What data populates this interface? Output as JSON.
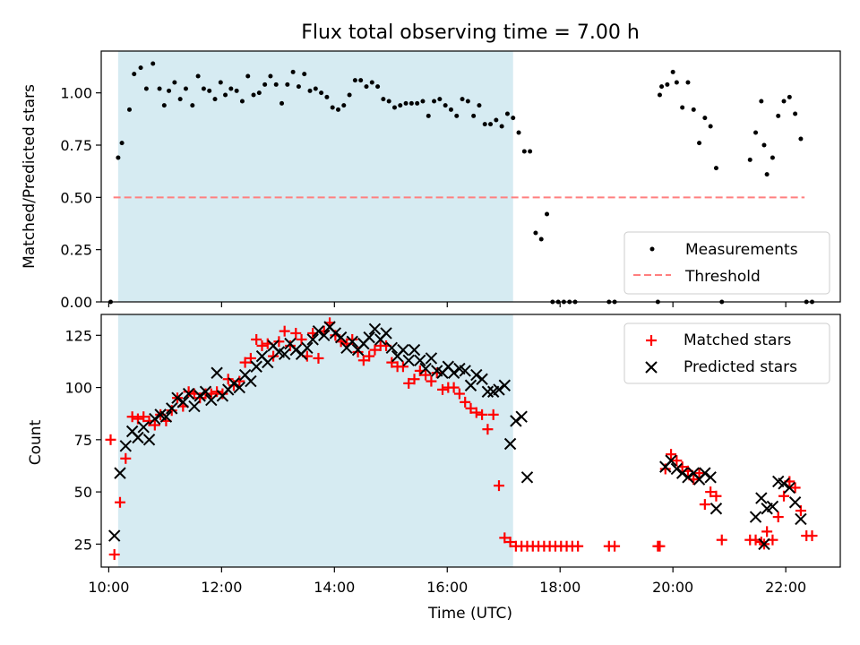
{
  "title": "Flux total observing time = 7.00 h",
  "chart_data": [
    {
      "type": "scatter",
      "panel": "top",
      "ylabel": "Matched/Predicted stars",
      "xlabel": "",
      "xlim": [
        "09:52",
        "22:58"
      ],
      "ylim": [
        0,
        1.2
      ],
      "yticks": [
        0.0,
        0.25,
        0.5,
        0.75,
        1.0
      ],
      "ytick_labels": [
        "0.00",
        "0.25",
        "0.50",
        "0.75",
        "1.00"
      ],
      "xticks": [
        "10:00",
        "12:00",
        "14:00",
        "16:00",
        "18:00",
        "20:00",
        "22:00"
      ],
      "shaded_interval": [
        "10:10",
        "17:10"
      ],
      "threshold": {
        "value": 0.5,
        "from": "10:05",
        "to": "22:20"
      },
      "legend": [
        "Measurements",
        "Threshold"
      ],
      "legend_loc": "lower right",
      "series": [
        {
          "name": "Measurements",
          "color": "#000000",
          "marker": "dot",
          "x": [
            "10:02",
            "10:10",
            "10:14",
            "10:22",
            "10:27",
            "10:34",
            "10:40",
            "10:47",
            "10:54",
            "10:59",
            "11:04",
            "11:10",
            "11:16",
            "11:22",
            "11:29",
            "11:35",
            "11:41",
            "11:47",
            "11:53",
            "11:59",
            "12:04",
            "12:10",
            "12:16",
            "12:22",
            "12:28",
            "12:34",
            "12:40",
            "12:46",
            "12:52",
            "12:58",
            "13:04",
            "13:10",
            "13:16",
            "13:22",
            "13:28",
            "13:34",
            "13:40",
            "13:46",
            "13:52",
            "13:58",
            "14:04",
            "14:10",
            "14:16",
            "14:22",
            "14:28",
            "14:34",
            "14:40",
            "14:46",
            "14:52",
            "14:58",
            "15:04",
            "15:10",
            "15:16",
            "15:22",
            "15:28",
            "15:34",
            "15:40",
            "15:46",
            "15:52",
            "15:58",
            "16:04",
            "16:10",
            "16:16",
            "16:22",
            "16:28",
            "16:34",
            "16:40",
            "16:46",
            "16:52",
            "16:58",
            "17:04",
            "17:10",
            "17:16",
            "17:22",
            "17:28",
            "17:34",
            "17:40",
            "17:46",
            "17:52",
            "17:58",
            "18:04",
            "18:10",
            "18:16",
            "18:52",
            "18:58",
            "19:44",
            "19:46",
            "19:48",
            "19:54",
            "20:00",
            "20:04",
            "20:10",
            "20:16",
            "20:22",
            "20:28",
            "20:34",
            "20:40",
            "20:46",
            "20:52",
            "21:22",
            "21:28",
            "21:34",
            "21:37",
            "21:40",
            "21:46",
            "21:52",
            "21:58",
            "22:04",
            "22:10",
            "22:16",
            "22:22",
            "22:28"
          ],
          "y": [
            0.0,
            0.69,
            0.76,
            0.92,
            1.09,
            1.12,
            1.02,
            1.14,
            1.02,
            0.94,
            1.01,
            1.05,
            0.97,
            1.02,
            0.94,
            1.08,
            1.02,
            1.01,
            0.97,
            1.05,
            0.99,
            1.02,
            1.01,
            0.96,
            1.08,
            0.99,
            1.0,
            1.04,
            1.08,
            1.04,
            0.95,
            1.04,
            1.1,
            1.03,
            1.09,
            1.01,
            1.02,
            1.0,
            0.98,
            0.93,
            0.92,
            0.94,
            0.99,
            1.06,
            1.06,
            1.03,
            1.05,
            1.03,
            0.97,
            0.96,
            0.93,
            0.94,
            0.95,
            0.95,
            0.95,
            0.96,
            0.89,
            0.96,
            0.97,
            0.94,
            0.92,
            0.89,
            0.97,
            0.96,
            0.89,
            0.94,
            0.85,
            0.85,
            0.87,
            0.84,
            0.9,
            0.88,
            0.81,
            0.72,
            0.72,
            0.33,
            0.3,
            0.42,
            0.0,
            0.0,
            0.0,
            0.0,
            0.0,
            0.0,
            0.0,
            0.0,
            0.99,
            1.03,
            1.04,
            1.1,
            1.05,
            0.93,
            1.05,
            0.92,
            0.76,
            0.88,
            0.84,
            0.64,
            0.0,
            0.68,
            0.81,
            0.96,
            0.75,
            0.61,
            0.69,
            0.89,
            0.96,
            0.98,
            0.9,
            0.78,
            0.0,
            0.0
          ]
        }
      ]
    },
    {
      "type": "scatter",
      "panel": "bottom",
      "xlabel": "Time (UTC)",
      "ylabel": "Count",
      "xlim": [
        "09:52",
        "22:58"
      ],
      "ylim": [
        14,
        135
      ],
      "yticks": [
        25,
        50,
        75,
        100,
        125
      ],
      "xticks": [
        "10:00",
        "12:00",
        "14:00",
        "16:00",
        "18:00",
        "20:00",
        "22:00"
      ],
      "shaded_interval": [
        "10:10",
        "17:10"
      ],
      "legend": [
        "Matched stars",
        "Predicted stars"
      ],
      "legend_loc": "upper right",
      "series": [
        {
          "name": "Matched stars",
          "color": "#ff0000",
          "marker": "plus",
          "x": [
            "10:02",
            "10:06",
            "10:12",
            "10:18",
            "10:25",
            "10:31",
            "10:37",
            "10:43",
            "10:49",
            "10:55",
            "11:01",
            "11:07",
            "11:13",
            "11:19",
            "11:25",
            "11:31",
            "11:37",
            "11:43",
            "11:49",
            "11:55",
            "12:01",
            "12:07",
            "12:13",
            "12:19",
            "12:25",
            "12:31",
            "12:37",
            "12:43",
            "12:49",
            "12:55",
            "13:01",
            "13:07",
            "13:13",
            "13:19",
            "13:25",
            "13:31",
            "13:37",
            "13:43",
            "13:49",
            "13:55",
            "14:01",
            "14:07",
            "14:13",
            "14:19",
            "14:25",
            "14:31",
            "14:37",
            "14:43",
            "14:49",
            "14:55",
            "15:01",
            "15:07",
            "15:13",
            "15:19",
            "15:25",
            "15:31",
            "15:37",
            "15:43",
            "15:49",
            "15:55",
            "16:01",
            "16:07",
            "16:13",
            "16:19",
            "16:25",
            "16:31",
            "16:37",
            "16:43",
            "16:49",
            "16:55",
            "17:01",
            "17:07",
            "17:13",
            "17:19",
            "17:25",
            "17:31",
            "17:37",
            "17:43",
            "17:49",
            "17:55",
            "18:01",
            "18:07",
            "18:13",
            "18:19",
            "18:52",
            "18:58",
            "19:44",
            "19:46",
            "19:52",
            "19:58",
            "20:04",
            "20:10",
            "20:16",
            "20:22",
            "20:28",
            "20:34",
            "20:40",
            "20:46",
            "20:52",
            "21:22",
            "21:28",
            "21:34",
            "21:37",
            "21:40",
            "21:46",
            "21:52",
            "21:58",
            "22:04",
            "22:10",
            "22:16",
            "22:22",
            "22:28"
          ],
          "y": [
            75,
            20,
            45,
            66,
            86,
            85,
            86,
            84,
            82,
            87,
            84,
            89,
            95,
            91,
            98,
            97,
            95,
            97,
            97,
            98,
            97,
            104,
            101,
            103,
            112,
            114,
            123,
            120,
            121,
            115,
            122,
            127,
            120,
            126,
            123,
            115,
            126,
            114,
            127,
            131,
            125,
            122,
            121,
            123,
            117,
            113,
            115,
            118,
            120,
            120,
            112,
            110,
            110,
            102,
            104,
            108,
            106,
            103,
            107,
            99,
            100,
            100,
            97,
            93,
            90,
            88,
            87,
            80,
            87,
            53,
            28,
            26,
            24,
            24,
            24,
            24,
            24,
            24,
            24,
            24,
            24,
            24,
            24,
            24,
            24,
            24,
            24,
            24,
            61,
            68,
            65,
            62,
            60,
            56,
            59,
            44,
            50,
            48,
            27,
            27,
            27,
            26,
            25,
            31,
            27,
            38,
            48,
            55,
            52,
            41,
            29,
            29
          ]
        },
        {
          "name": "Predicted stars",
          "color": "#000000",
          "marker": "x",
          "x": [
            "10:06",
            "10:12",
            "10:18",
            "10:25",
            "10:31",
            "10:37",
            "10:43",
            "10:49",
            "10:55",
            "11:01",
            "11:07",
            "11:13",
            "11:19",
            "11:25",
            "11:31",
            "11:37",
            "11:43",
            "11:49",
            "11:55",
            "12:01",
            "12:07",
            "12:13",
            "12:19",
            "12:25",
            "12:31",
            "12:37",
            "12:43",
            "12:49",
            "12:55",
            "13:01",
            "13:07",
            "13:13",
            "13:19",
            "13:25",
            "13:31",
            "13:37",
            "13:43",
            "13:49",
            "13:55",
            "14:01",
            "14:07",
            "14:13",
            "14:19",
            "14:25",
            "14:31",
            "14:37",
            "14:43",
            "14:49",
            "14:55",
            "15:01",
            "15:07",
            "15:13",
            "15:19",
            "15:25",
            "15:31",
            "15:37",
            "15:43",
            "15:49",
            "15:55",
            "16:01",
            "16:07",
            "16:13",
            "16:19",
            "16:25",
            "16:31",
            "16:37",
            "16:43",
            "16:49",
            "16:55",
            "17:01",
            "17:07",
            "17:13",
            "17:19",
            "17:25",
            "19:52",
            "19:58",
            "20:04",
            "20:10",
            "20:16",
            "20:22",
            "20:28",
            "20:34",
            "20:40",
            "20:46",
            "21:28",
            "21:34",
            "21:37",
            "21:40",
            "21:46",
            "21:52",
            "21:58",
            "22:04",
            "22:10",
            "22:16"
          ],
          "y": [
            29,
            59,
            72,
            79,
            76,
            81,
            75,
            85,
            87,
            86,
            90,
            95,
            93,
            97,
            91,
            96,
            98,
            94,
            107,
            96,
            99,
            102,
            100,
            106,
            103,
            110,
            115,
            112,
            120,
            117,
            116,
            121,
            118,
            116,
            119,
            123,
            127,
            125,
            129,
            126,
            124,
            119,
            122,
            118,
            121,
            124,
            128,
            123,
            126,
            119,
            115,
            118,
            113,
            118,
            113,
            109,
            114,
            108,
            107,
            110,
            107,
            109,
            108,
            101,
            106,
            104,
            98,
            98,
            99,
            101,
            73,
            84,
            86,
            57,
            62,
            65,
            61,
            59,
            57,
            59,
            56,
            59,
            57,
            42,
            38,
            47,
            25,
            42,
            43,
            55,
            54,
            52,
            45,
            37
          ]
        }
      ]
    }
  ]
}
